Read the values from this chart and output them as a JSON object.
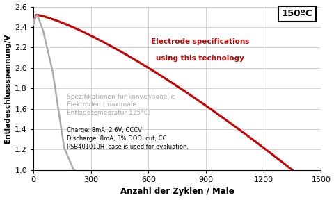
{
  "title_box": "150ºC",
  "xlabel": "Anzahl der Zyklen / Male",
  "ylabel": "Entladeschlussspannung/V",
  "xlim": [
    0,
    1500
  ],
  "ylim": [
    1.0,
    2.6
  ],
  "xticks": [
    0,
    300,
    600,
    900,
    1200,
    1500
  ],
  "yticks": [
    1.0,
    1.2,
    1.4,
    1.6,
    1.8,
    2.0,
    2.2,
    2.4,
    2.6
  ],
  "red_label_line1": "Electrode specifications",
  "red_label_line2": "using this technology",
  "gray_label": "Spezifikationen für konventionelle\nElektroden (maximale\nEntladetemperatur 125°C)",
  "annotation": "Charge: 8mA, 2.6V, CCCV\nDischarge: 8mA, 3% DOD  cut, CC\nPSB401010H  case is used for evaluation.",
  "red_color": "#cc0000",
  "gray_color": "#aaaaaa",
  "background_color": "#ffffff",
  "grid_color": "#cccccc"
}
